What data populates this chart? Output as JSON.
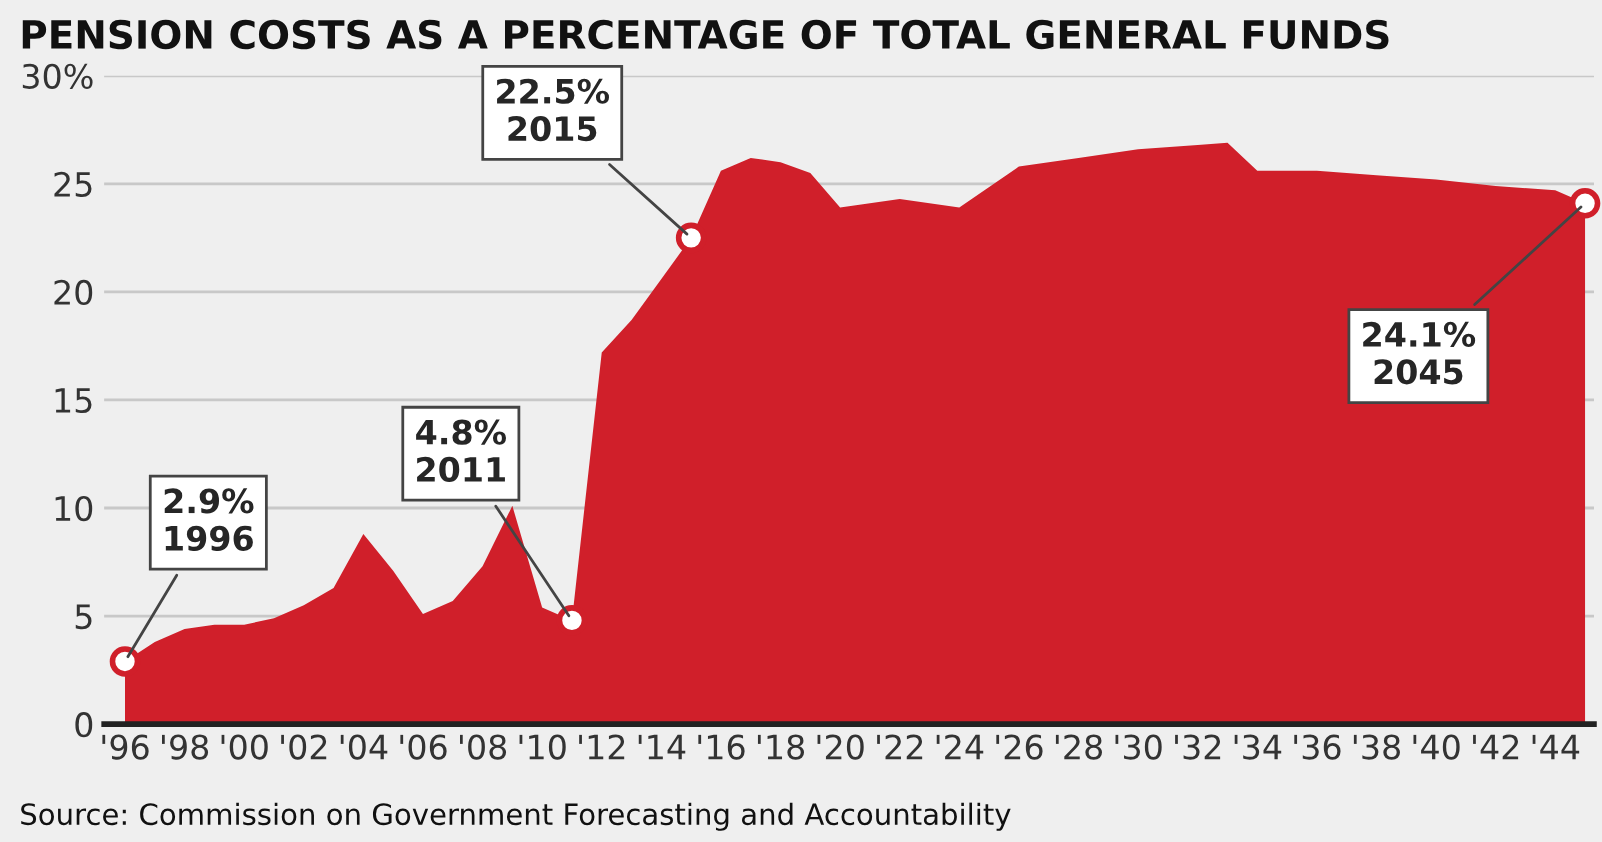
{
  "chart_data": {
    "type": "area",
    "title": "PENSION COSTS AS A PERCENTAGE OF TOTAL GENERAL FUNDS",
    "x": [
      1996,
      1997,
      1998,
      1999,
      2000,
      2001,
      2002,
      2003,
      2004,
      2005,
      2006,
      2007,
      2008,
      2009,
      2010,
      2011,
      2012,
      2013,
      2014,
      2015,
      2016,
      2017,
      2018,
      2019,
      2020,
      2022,
      2024,
      2026,
      2028,
      2030,
      2032,
      2033,
      2034,
      2036,
      2038,
      2040,
      2042,
      2044,
      2045
    ],
    "series": [
      {
        "color": "#d01f2a",
        "values": [
          2.9,
          3.8,
          4.4,
          4.6,
          4.6,
          4.9,
          5.5,
          6.3,
          8.8,
          7.1,
          5.1,
          5.7,
          7.3,
          10.1,
          5.4,
          4.8,
          17.2,
          18.7,
          20.6,
          22.5,
          25.6,
          26.2,
          26.0,
          25.5,
          23.9,
          24.3,
          23.9,
          25.8,
          26.2,
          26.6,
          26.8,
          26.9,
          25.6,
          25.6,
          25.4,
          25.2,
          24.9,
          24.7,
          24.1
        ]
      }
    ],
    "xlim": [
      1995.3,
      2045.3
    ],
    "ylim": [
      0,
      30
    ],
    "xticks": [
      {
        "value": 1996,
        "label": "'96"
      },
      {
        "value": 1998,
        "label": "'98"
      },
      {
        "value": 2000,
        "label": "'00"
      },
      {
        "value": 2002,
        "label": "'02"
      },
      {
        "value": 2004,
        "label": "'04"
      },
      {
        "value": 2006,
        "label": "'06"
      },
      {
        "value": 2008,
        "label": "'08"
      },
      {
        "value": 2010,
        "label": "'10"
      },
      {
        "value": 2012,
        "label": "'12"
      },
      {
        "value": 2014,
        "label": "'14"
      },
      {
        "value": 2016,
        "label": "'16"
      },
      {
        "value": 2018,
        "label": "'18"
      },
      {
        "value": 2020,
        "label": "'20"
      },
      {
        "value": 2022,
        "label": "'22"
      },
      {
        "value": 2024,
        "label": "'24"
      },
      {
        "value": 2026,
        "label": "'26"
      },
      {
        "value": 2028,
        "label": "'28"
      },
      {
        "value": 2030,
        "label": "'30"
      },
      {
        "value": 2032,
        "label": "'32"
      },
      {
        "value": 2034,
        "label": "'34"
      },
      {
        "value": 2036,
        "label": "'36"
      },
      {
        "value": 2038,
        "label": "'38"
      },
      {
        "value": 2040,
        "label": "'40"
      },
      {
        "value": 2042,
        "label": "'42"
      },
      {
        "value": 2044,
        "label": "'44"
      }
    ],
    "yticks": [
      0,
      5,
      10,
      15,
      20,
      {
        "value": 25,
        "label": "25"
      },
      {
        "value": 30,
        "label": "30%"
      }
    ],
    "grid": "y",
    "annotations": [
      {
        "text": "2.9%\n1996",
        "x": 1996,
        "y": 2.9
      },
      {
        "text": "4.8%\n2011",
        "x": 2011,
        "y": 4.8
      },
      {
        "text": "22.5%\n2015",
        "x": 2015,
        "y": 22.5
      },
      {
        "text": "24.1%\n2045",
        "x": 2045,
        "y": 24.1
      },
      "Source: Commission on Government Forecasting and Accountability"
    ]
  }
}
